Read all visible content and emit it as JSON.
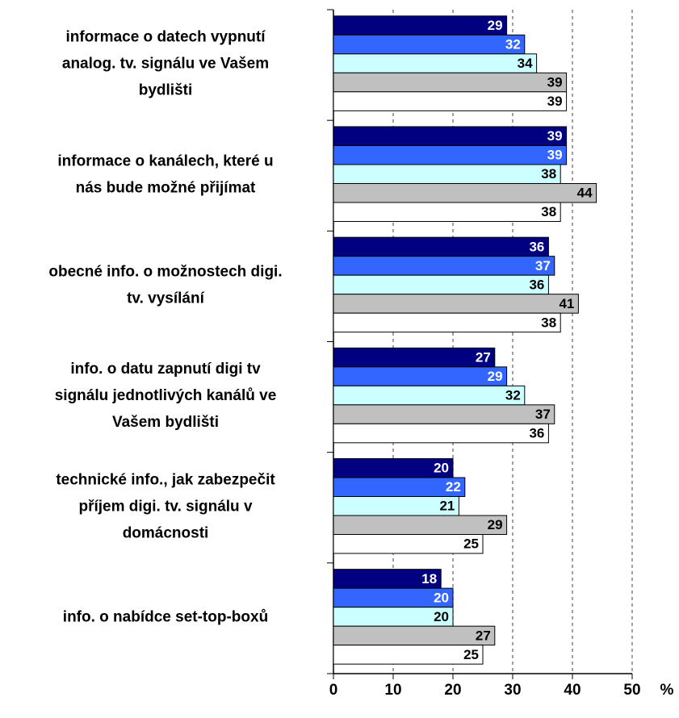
{
  "chart_data": {
    "type": "bar",
    "orientation": "horizontal",
    "categories": [
      [
        "informace o datech vypnutí",
        "analog. tv. signálu ve Vašem",
        "bydlišti"
      ],
      [
        "informace o kanálech, které u",
        "nás bude možné přijímat"
      ],
      [
        "obecné info. o možnostech digi.",
        "tv. vysílání"
      ],
      [
        "info. o datu zapnutí digi tv",
        "signálu jednotlivých kanálů ve",
        "Vašem bydlišti"
      ],
      [
        "technické info., jak zabezpečit",
        "příjem digi. tv. signálu v",
        "domácnosti"
      ],
      [
        "info. o nabídce set-top-boxů"
      ]
    ],
    "series": [
      {
        "color": "#000080",
        "label_color": "#ffffff",
        "values": [
          29,
          39,
          36,
          27,
          20,
          18
        ]
      },
      {
        "color": "#3366ff",
        "label_color": "#ffffff",
        "values": [
          32,
          39,
          37,
          29,
          22,
          20
        ]
      },
      {
        "color": "#ccffff",
        "label_color": "#000000",
        "values": [
          34,
          38,
          36,
          32,
          21,
          20
        ]
      },
      {
        "color": "#c0c0c0",
        "label_color": "#000000",
        "values": [
          39,
          44,
          41,
          37,
          29,
          27
        ]
      },
      {
        "color": "#ffffff",
        "label_color": "#000000",
        "values": [
          39,
          38,
          38,
          36,
          25,
          25
        ]
      }
    ],
    "xlim": [
      0,
      50
    ],
    "xticks": [
      0,
      10,
      20,
      30,
      40,
      50
    ],
    "x_label": "%",
    "grid": true
  }
}
